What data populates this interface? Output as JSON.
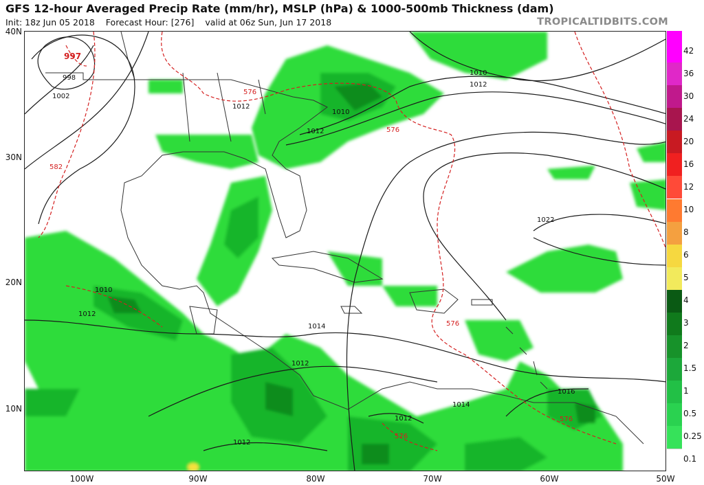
{
  "header": {
    "title": "GFS 12-hour Averaged Precip Rate (mm/hr), MSLP (hPa) & 1000-500mb Thickness (dam)",
    "init": "Init: 18z Jun 05 2018",
    "forecast_hour": "Forecast Hour: [276]",
    "valid": "valid at 06z Sun, Jun 17 2018",
    "brand": "TROPICALTIDBITS.COM"
  },
  "map": {
    "lat_labels": [
      "40N",
      "30N",
      "20N",
      "10N"
    ],
    "lon_labels": [
      "100W",
      "90W",
      "80W",
      "70W",
      "60W",
      "50W"
    ],
    "isobar_labels": [
      "997",
      "998",
      "1002",
      "1012",
      "1010",
      "1012",
      "1010",
      "1012",
      "1022",
      "1010",
      "1012",
      "1014",
      "1012",
      "1014",
      "1012",
      "1016",
      "1012"
    ],
    "thickness_labels": [
      "576",
      "576",
      "582",
      "576",
      "576",
      "576"
    ],
    "colors": {
      "isobar": "#1a1a1a",
      "thickness": "#d42020",
      "border": "#333333",
      "precip_light": "#2edc3a",
      "precip_mid": "#17b52a",
      "precip_dark": "#0a8c1c",
      "precip_yellow": "#f6e13c"
    }
  },
  "colorbar": {
    "labels": [
      "42",
      "36",
      "30",
      "24",
      "20",
      "16",
      "12",
      "10",
      "8",
      "6",
      "5",
      "4",
      "3",
      "2",
      "1.5",
      "1",
      "0.5",
      "0.25",
      "0.1"
    ],
    "colors": [
      "#ff00ff",
      "#e028c8",
      "#c0198c",
      "#a8154e",
      "#c81a22",
      "#f02020",
      "#ff4a38",
      "#ff7a30",
      "#f4a040",
      "#f6d840",
      "#f2ea5c",
      "#0a5a14",
      "#107a1c",
      "#17922a",
      "#1ca83a",
      "#22c046",
      "#2ad250",
      "#36e25a",
      "#ffffff"
    ]
  }
}
